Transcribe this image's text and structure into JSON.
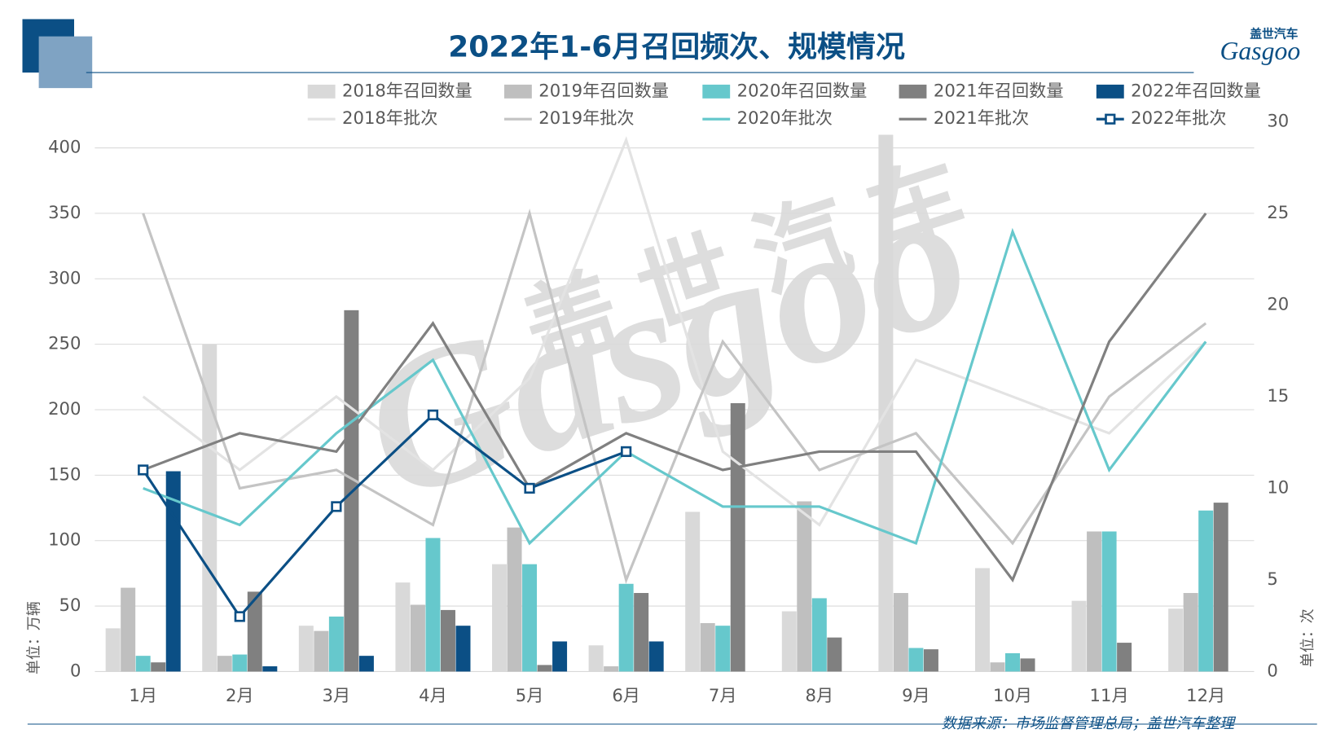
{
  "chart_data": {
    "type": "combo",
    "title": "2022年1-6月召回频次、规模情况",
    "y_axis_label": "单位：万辆",
    "y2_axis_label": "单位：次",
    "source": "数据来源：市场监督管理总局；盖世汽车整理",
    "logo": {
      "cn": "盖世汽车",
      "en": "Gasgoo"
    },
    "categories": [
      "1月",
      "2月",
      "3月",
      "4月",
      "5月",
      "6月",
      "7月",
      "8月",
      "9月",
      "10月",
      "11月",
      "12月"
    ],
    "ylim": [
      0,
      420
    ],
    "yticks": [
      0,
      50,
      100,
      150,
      200,
      250,
      300,
      350,
      400
    ],
    "y2lim": [
      0,
      30
    ],
    "y2ticks": [
      0,
      5,
      10,
      15,
      20,
      25,
      30
    ],
    "grid": true,
    "series": [
      {
        "name": "2018年召回数量",
        "type": "bar",
        "color": "#d9d9d9",
        "values": [
          33,
          250,
          35,
          68,
          82,
          20,
          122,
          46,
          410,
          79,
          54,
          48
        ]
      },
      {
        "name": "2019年召回数量",
        "type": "bar",
        "color": "#bfbfbf",
        "values": [
          64,
          12,
          31,
          51,
          110,
          4,
          37,
          130,
          60,
          7,
          107,
          60
        ]
      },
      {
        "name": "2020年召回数量",
        "type": "bar",
        "color": "#66c8cc",
        "values": [
          12,
          13,
          42,
          102,
          82,
          67,
          35,
          56,
          18,
          14,
          107,
          123
        ]
      },
      {
        "name": "2021年召回数量",
        "type": "bar",
        "color": "#808080",
        "values": [
          7,
          61,
          276,
          47,
          5,
          60,
          205,
          26,
          17,
          10,
          22,
          129
        ]
      },
      {
        "name": "2022年召回数量",
        "type": "bar",
        "color": "#0b4f85",
        "values": [
          153,
          4,
          12,
          35,
          23,
          23,
          null,
          null,
          null,
          null,
          null,
          null
        ]
      },
      {
        "name": "2018年批次",
        "type": "line",
        "axis": "y2",
        "color": "#e3e3e3",
        "values": [
          15,
          11,
          15,
          11,
          16,
          29,
          12,
          8,
          17,
          15,
          13,
          18
        ]
      },
      {
        "name": "2019年批次",
        "type": "line",
        "axis": "y2",
        "color": "#c4c4c4",
        "values": [
          25,
          10,
          11,
          8,
          25,
          5,
          18,
          11,
          13,
          7,
          15,
          19
        ]
      },
      {
        "name": "2020年批次",
        "type": "line",
        "axis": "y2",
        "color": "#66c8cc",
        "values": [
          10,
          8,
          13,
          17,
          7,
          12,
          9,
          9,
          7,
          24,
          11,
          18
        ]
      },
      {
        "name": "2021年批次",
        "type": "line",
        "axis": "y2",
        "color": "#808080",
        "values": [
          11,
          13,
          12,
          19,
          10,
          13,
          11,
          12,
          12,
          5,
          18,
          25
        ]
      },
      {
        "name": "2022年批次",
        "type": "line",
        "axis": "y2",
        "color": "#0b4f85",
        "marker": "square",
        "values": [
          11,
          3,
          9,
          14,
          10,
          12,
          null,
          null,
          null,
          null,
          null,
          null
        ]
      }
    ]
  }
}
